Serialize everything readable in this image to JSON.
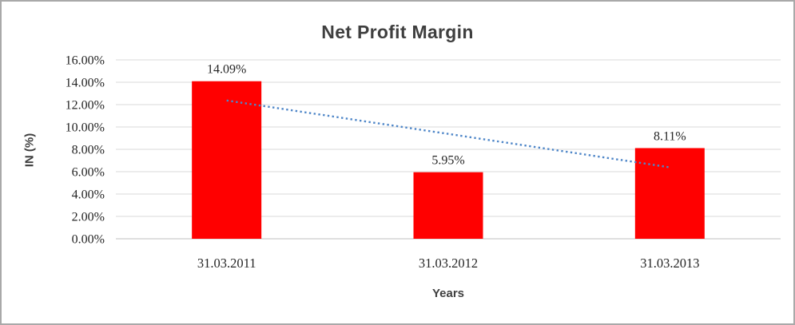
{
  "chart_data": {
    "type": "bar",
    "title": "Net Profit Margin",
    "xlabel": "Years",
    "ylabel": "IN (%)",
    "categories": [
      "31.03.2011",
      "31.03.2012",
      "31.03.2013"
    ],
    "values": [
      14.09,
      5.95,
      8.11
    ],
    "data_labels": [
      "14.09%",
      "5.95%",
      "8.11%"
    ],
    "ylim": [
      0,
      16
    ],
    "ytick_step": 2,
    "ytick_labels": [
      "0.00%",
      "2.00%",
      "4.00%",
      "6.00%",
      "8.00%",
      "10.00%",
      "12.00%",
      "14.00%",
      "16.00%"
    ],
    "grid": true,
    "legend": "none",
    "bar_color": "#FF0000",
    "gridline_color": "#D9D9D9",
    "axis_line_color": "#BFBFBF",
    "label_text_color": "#262626",
    "title_color": "#3F3F3F",
    "trendline": {
      "type": "linear",
      "style": "dotted",
      "color": "#4E86C8",
      "start_value": 12.37,
      "end_value": 6.39
    }
  }
}
